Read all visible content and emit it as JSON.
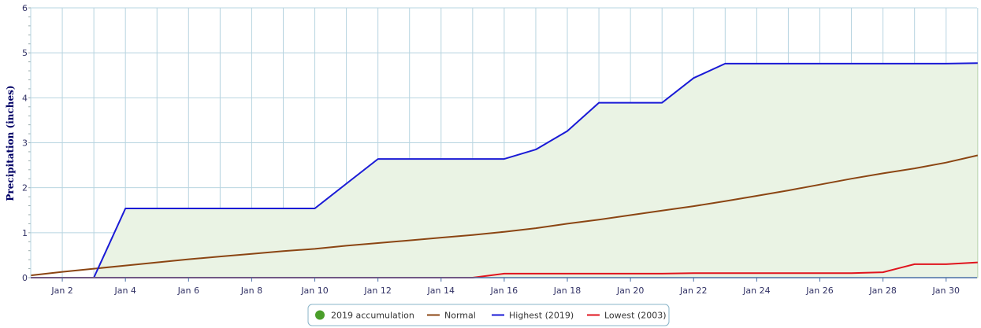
{
  "chart_data": {
    "type": "line",
    "title": "",
    "ylabel": "Precipitation (inches)",
    "xlabel": "",
    "ylim": [
      0,
      6
    ],
    "xlim": [
      1,
      31
    ],
    "yticks": [
      0,
      1,
      2,
      3,
      4,
      5,
      6
    ],
    "xticks": [
      {
        "day": 2,
        "label": "Jan 2"
      },
      {
        "day": 4,
        "label": "Jan 4"
      },
      {
        "day": 6,
        "label": "Jan 6"
      },
      {
        "day": 8,
        "label": "Jan 8"
      },
      {
        "day": 10,
        "label": "Jan 10"
      },
      {
        "day": 12,
        "label": "Jan 12"
      },
      {
        "day": 14,
        "label": "Jan 14"
      },
      {
        "day": 16,
        "label": "Jan 16"
      },
      {
        "day": 18,
        "label": "Jan 18"
      },
      {
        "day": 20,
        "label": "Jan 20"
      },
      {
        "day": 22,
        "label": "Jan 22"
      },
      {
        "day": 24,
        "label": "Jan 24"
      },
      {
        "day": 26,
        "label": "Jan 26"
      },
      {
        "day": 28,
        "label": "Jan 28"
      },
      {
        "day": 30,
        "label": "Jan 30"
      }
    ],
    "grid": true,
    "legend_position": "bottom-center",
    "x": [
      1,
      2,
      3,
      4,
      5,
      6,
      7,
      8,
      9,
      10,
      11,
      12,
      13,
      14,
      15,
      16,
      17,
      18,
      19,
      20,
      21,
      22,
      23,
      24,
      25,
      26,
      27,
      28,
      29,
      30,
      31
    ],
    "series": [
      {
        "name": "2019 accumulation",
        "style": "area",
        "color": "#4a9e2a",
        "fill": "#eaf3e4",
        "stroke": "#bcd6b0",
        "values": [
          0.0,
          0.0,
          0.0,
          1.54,
          1.54,
          1.54,
          1.54,
          1.54,
          1.54,
          1.54,
          2.09,
          2.64,
          2.64,
          2.64,
          2.64,
          2.64,
          2.85,
          3.26,
          3.89,
          3.89,
          3.89,
          4.44,
          4.76,
          4.76,
          4.76,
          4.76,
          4.76,
          4.76,
          4.76,
          4.76,
          4.77
        ]
      },
      {
        "name": "Normal",
        "style": "line",
        "color": "#8b4513",
        "values": [
          0.05,
          0.13,
          0.2,
          0.27,
          0.34,
          0.41,
          0.47,
          0.53,
          0.59,
          0.64,
          0.71,
          0.77,
          0.83,
          0.89,
          0.95,
          1.02,
          1.1,
          1.2,
          1.29,
          1.39,
          1.49,
          1.59,
          1.7,
          1.82,
          1.94,
          2.07,
          2.2,
          2.32,
          2.43,
          2.56,
          2.72
        ]
      },
      {
        "name": "Highest (2019)",
        "style": "line",
        "color": "#1a1ad6",
        "values": [
          0.0,
          0.0,
          0.0,
          1.54,
          1.54,
          1.54,
          1.54,
          1.54,
          1.54,
          1.54,
          2.09,
          2.64,
          2.64,
          2.64,
          2.64,
          2.64,
          2.85,
          3.26,
          3.89,
          3.89,
          3.89,
          4.44,
          4.76,
          4.76,
          4.76,
          4.76,
          4.76,
          4.76,
          4.76,
          4.76,
          4.77
        ]
      },
      {
        "name": "Lowest (2003)",
        "style": "line",
        "color": "#e0141e",
        "values": [
          0.0,
          0.0,
          0.0,
          0.0,
          0.0,
          0.0,
          0.0,
          0.0,
          0.0,
          0.0,
          0.0,
          0.0,
          0.0,
          0.0,
          0.0,
          0.09,
          0.09,
          0.09,
          0.09,
          0.09,
          0.09,
          0.1,
          0.1,
          0.1,
          0.1,
          0.1,
          0.1,
          0.12,
          0.3,
          0.3,
          0.34
        ]
      }
    ]
  }
}
